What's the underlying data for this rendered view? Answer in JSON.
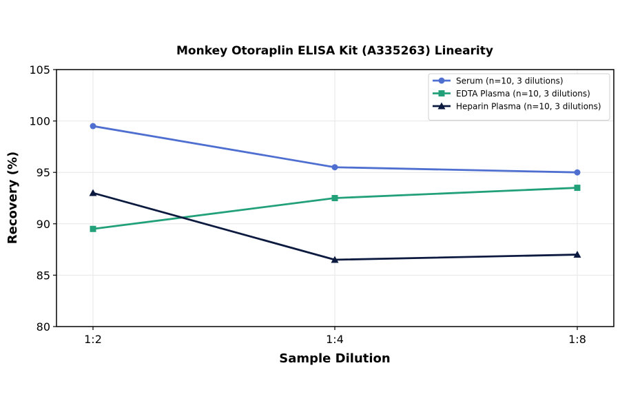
{
  "chart_data": {
    "type": "line",
    "title": "Monkey Otoraplin ELISA Kit (A335263) Linearity",
    "xlabel": "Sample Dilution",
    "ylabel": "Recovery (%)",
    "categories": [
      "1:2",
      "1:4",
      "1:8"
    ],
    "ylim": [
      80,
      105
    ],
    "yticks": [
      80,
      85,
      90,
      95,
      100,
      105
    ],
    "grid": true,
    "legend_position": "top-right",
    "series": [
      {
        "name": "Serum (n=10, 3 dilutions)",
        "values": [
          99.5,
          95.5,
          95.0
        ],
        "color": "#4f6fd0",
        "marker": "circle"
      },
      {
        "name": "EDTA Plasma (n=10, 3 dilutions)",
        "values": [
          89.5,
          92.5,
          93.5
        ],
        "color": "#22a07a",
        "marker": "square"
      },
      {
        "name": "Heparin Plasma (n=10, 3 dilutions)",
        "values": [
          93.0,
          86.5,
          87.0
        ],
        "color": "#0d1a40",
        "marker": "triangle"
      }
    ]
  }
}
